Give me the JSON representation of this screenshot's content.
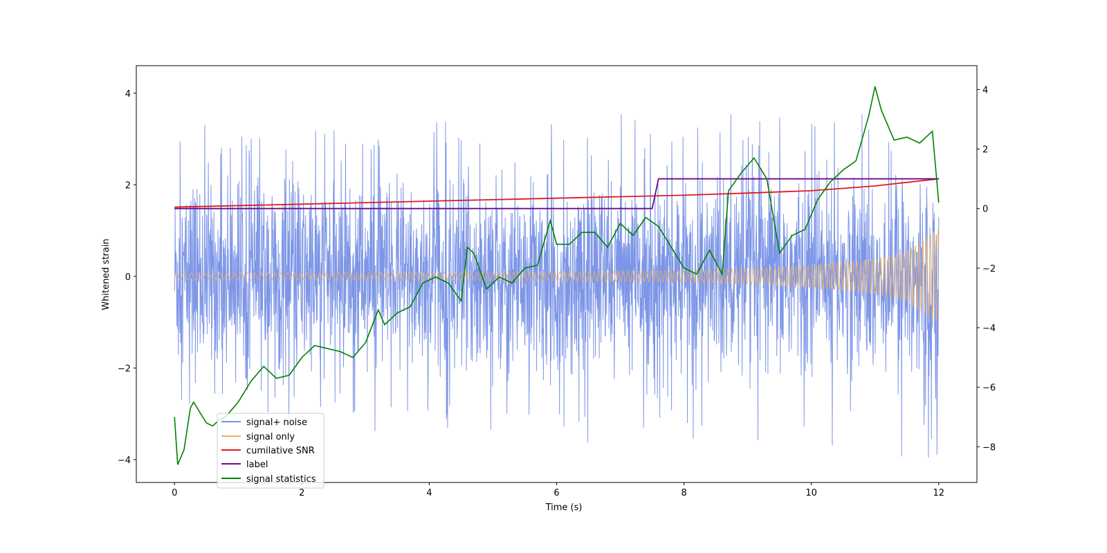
{
  "chart_data": {
    "type": "line",
    "xlabel": "Time (s)",
    "ylabel": "Whitened strain",
    "xlim": [
      -0.6,
      12.6
    ],
    "ylim_left": [
      -4.5,
      4.6
    ],
    "ylim_right": [
      -9.2,
      4.8
    ],
    "x_ticks": [
      0,
      2,
      4,
      6,
      8,
      10,
      12
    ],
    "y_ticks_left": [
      -4,
      -2,
      0,
      2,
      4
    ],
    "y_ticks_right": [
      -8,
      -6,
      -4,
      -2,
      0,
      2,
      4
    ],
    "legend": {
      "placement": "lower-left",
      "entries": [
        "signal+ noise",
        "signal only",
        "cumilative SNR",
        "label",
        "signal statistics"
      ]
    },
    "series": [
      {
        "name": "signal+ noise",
        "axis": "left",
        "color": "#7690e6",
        "description_points": {
          "x": [
            0,
            1,
            2,
            3,
            4,
            5,
            6,
            7,
            8,
            9,
            10,
            11,
            12
          ],
          "upper_envelope": [
            3.4,
            2.9,
            3.0,
            3.1,
            3.2,
            3.3,
            3.2,
            3.4,
            3.3,
            3.5,
            3.5,
            3.8,
            3.7
          ],
          "lower_envelope": [
            -3.0,
            -3.0,
            -3.1,
            -3.2,
            -3.3,
            -3.4,
            -3.4,
            -3.5,
            -3.6,
            -3.6,
            -3.7,
            -3.9,
            -4.0
          ]
        }
      },
      {
        "name": "signal only",
        "axis": "left",
        "color": "#f0b060",
        "amplitude": {
          "x": [
            0,
            2,
            4,
            6,
            8,
            9,
            10,
            11,
            11.5,
            12
          ],
          "y": [
            0.08,
            0.08,
            0.09,
            0.1,
            0.13,
            0.17,
            0.24,
            0.38,
            0.55,
            1.05
          ]
        }
      },
      {
        "name": "cumilative SNR",
        "axis": "right",
        "color": "#e0191e",
        "x": [
          0,
          2,
          4,
          6,
          8,
          9,
          10,
          10.5,
          11,
          11.5,
          12
        ],
        "y": [
          0.05,
          0.15,
          0.25,
          0.35,
          0.45,
          0.52,
          0.6,
          0.68,
          0.76,
          0.88,
          1.0
        ]
      },
      {
        "name": "label",
        "axis": "right",
        "color": "#6a0a8a",
        "x": [
          0,
          7.5,
          7.6,
          12
        ],
        "y": [
          0,
          0,
          1,
          1
        ]
      },
      {
        "name": "signal statistics",
        "axis": "right",
        "color": "#007f00",
        "x": [
          0,
          0.05,
          0.15,
          0.25,
          0.3,
          0.5,
          0.6,
          0.7,
          0.8,
          1.0,
          1.2,
          1.4,
          1.6,
          1.8,
          2.0,
          2.2,
          2.4,
          2.6,
          2.8,
          3.0,
          3.2,
          3.3,
          3.5,
          3.7,
          3.9,
          4.1,
          4.3,
          4.5,
          4.6,
          4.7,
          4.9,
          5.1,
          5.3,
          5.5,
          5.7,
          5.9,
          6.0,
          6.2,
          6.4,
          6.6,
          6.8,
          7.0,
          7.2,
          7.4,
          7.6,
          7.8,
          8.0,
          8.2,
          8.4,
          8.6,
          8.7,
          8.9,
          9.1,
          9.3,
          9.5,
          9.7,
          9.9,
          10.1,
          10.3,
          10.5,
          10.7,
          10.9,
          11.0,
          11.1,
          11.3,
          11.5,
          11.7,
          11.9,
          12.0
        ],
        "y": [
          -7.0,
          -8.6,
          -8.1,
          -6.7,
          -6.5,
          -7.2,
          -7.3,
          -7.1,
          -7.0,
          -6.5,
          -5.8,
          -5.3,
          -5.7,
          -5.6,
          -5.0,
          -4.6,
          -4.7,
          -4.8,
          -5.0,
          -4.5,
          -3.4,
          -3.9,
          -3.5,
          -3.3,
          -2.5,
          -2.3,
          -2.5,
          -3.1,
          -1.3,
          -1.5,
          -2.7,
          -2.3,
          -2.5,
          -2.0,
          -1.9,
          -0.4,
          -1.2,
          -1.2,
          -0.8,
          -0.8,
          -1.3,
          -0.5,
          -0.9,
          -0.3,
          -0.6,
          -1.3,
          -2.0,
          -2.2,
          -1.4,
          -2.2,
          0.6,
          1.2,
          1.7,
          1.0,
          -1.5,
          -0.9,
          -0.7,
          0.3,
          0.9,
          1.3,
          1.6,
          3.1,
          4.1,
          3.3,
          2.3,
          2.4,
          2.2,
          2.6,
          0.2
        ]
      }
    ]
  }
}
